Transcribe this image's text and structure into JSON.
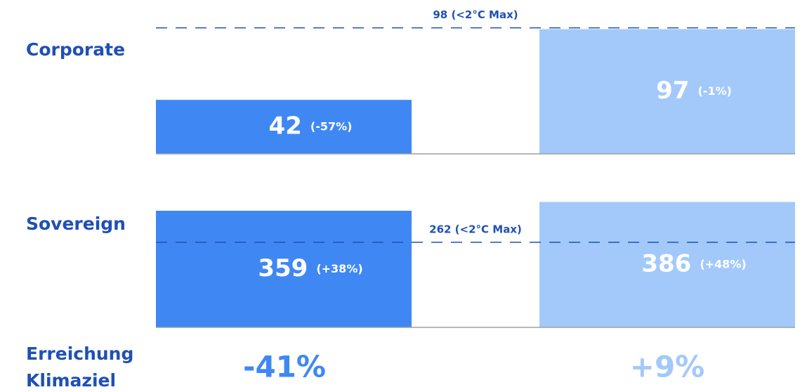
{
  "chart_data": [
    {
      "type": "bar",
      "title": "Corporate",
      "values": [
        42,
        97
      ],
      "change_labels": [
        "(-57%)",
        "(-1%)"
      ],
      "colors": [
        "#3f88f4",
        "#a3c9fb"
      ],
      "ylim": [
        0,
        100
      ],
      "reference": {
        "value": 98,
        "label": "98 (<2°C Max)",
        "color": "#1f50b4"
      }
    },
    {
      "type": "bar",
      "title": "Sovereign",
      "values": [
        359,
        386
      ],
      "change_labels": [
        "(+38%)",
        "(+48%)"
      ],
      "colors": [
        "#3f88f4",
        "#a3c9fb"
      ],
      "ylim": [
        0,
        400
      ],
      "reference": {
        "value": 262,
        "label": "262 (<2°C Max)",
        "color": "#1f50b4"
      }
    }
  ],
  "footer": {
    "label": [
      "Erreichung",
      "Klimaziel"
    ],
    "values": [
      "-41%",
      "+9%"
    ]
  }
}
